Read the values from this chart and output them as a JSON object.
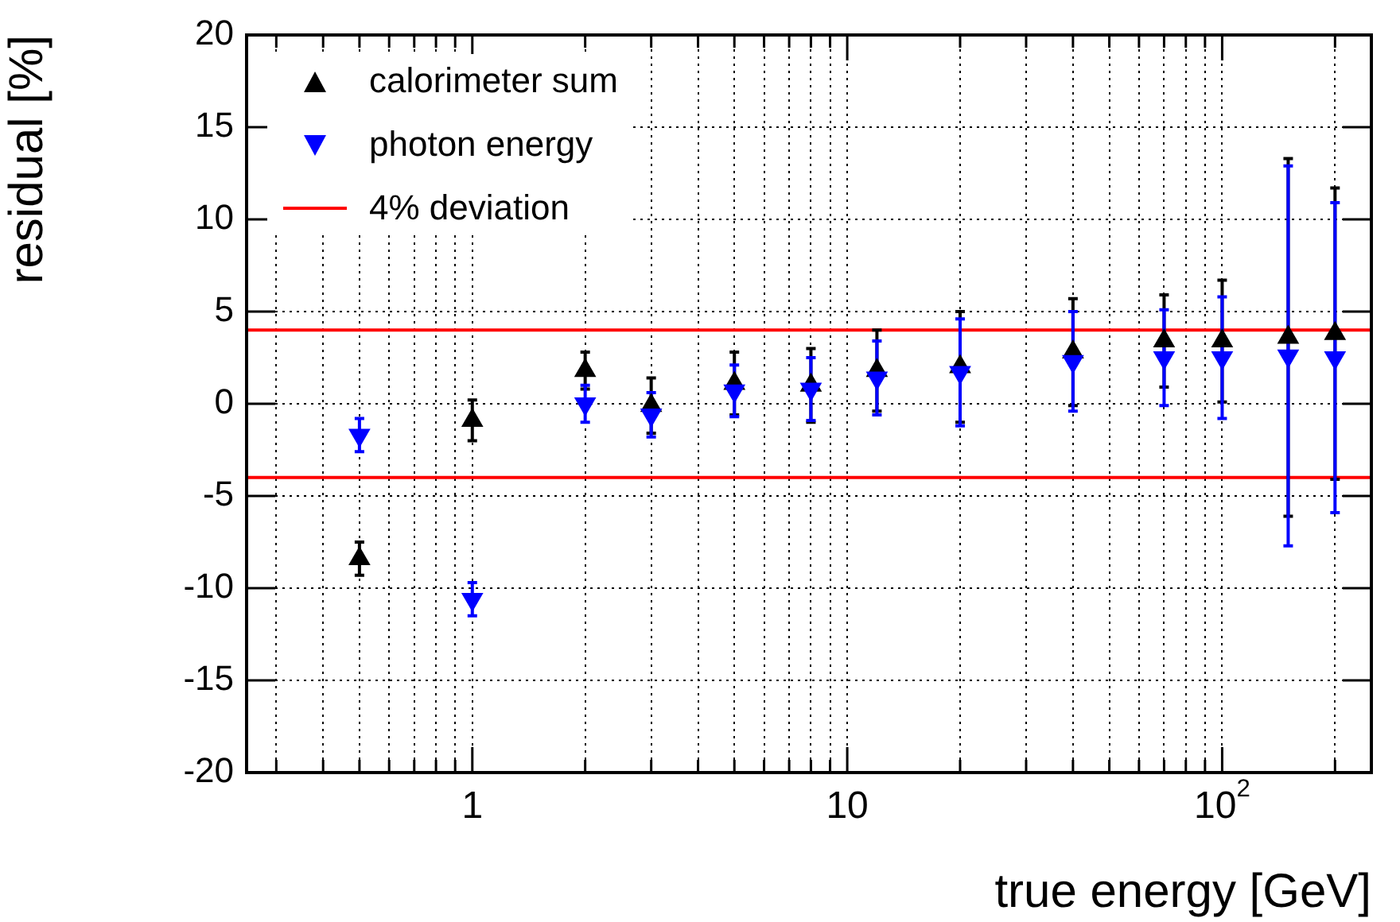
{
  "chart_data": {
    "type": "scatter",
    "xlabel": "true energy [GeV]",
    "ylabel": "residual [%]",
    "log": "x",
    "xlim": [
      0.25,
      250
    ],
    "ylim": [
      -20,
      20
    ],
    "xticks": [
      {
        "value": 0.3,
        "label": null
      },
      {
        "value": 0.4,
        "label": null
      },
      {
        "value": 0.5,
        "label": null
      },
      {
        "value": 0.6,
        "label": null
      },
      {
        "value": 0.7,
        "label": null
      },
      {
        "value": 0.8,
        "label": null
      },
      {
        "value": 0.9,
        "label": null
      },
      1,
      {
        "value": 2,
        "label": null
      },
      {
        "value": 3,
        "label": null
      },
      {
        "value": 4,
        "label": null
      },
      {
        "value": 5,
        "label": null
      },
      {
        "value": 6,
        "label": null
      },
      {
        "value": 7,
        "label": null
      },
      {
        "value": 8,
        "label": null
      },
      {
        "value": 9,
        "label": null
      },
      10,
      {
        "value": 20,
        "label": null
      },
      {
        "value": 30,
        "label": null
      },
      {
        "value": 40,
        "label": null
      },
      {
        "value": 50,
        "label": null
      },
      {
        "value": 60,
        "label": null
      },
      {
        "value": 70,
        "label": null
      },
      {
        "value": 80,
        "label": null
      },
      {
        "value": 90,
        "label": null
      },
      {
        "value": 100,
        "label": "10$^{2}$"
      },
      {
        "value": 200,
        "label": null
      }
    ],
    "yticks": [
      -20,
      -15,
      -10,
      -5,
      0,
      5,
      10,
      15,
      20
    ],
    "grid": true,
    "legend": "top left",
    "series": [
      {
        "name": "calorimeter sum",
        "color": "#000000",
        "marker": "triangle",
        "x": [
          0.5,
          1,
          2,
          3,
          5,
          8,
          12,
          20,
          40,
          70,
          100,
          150,
          200
        ],
        "values": [
          -8.4,
          -0.9,
          1.8,
          -0.1,
          1.1,
          1.0,
          1.8,
          2.0,
          2.8,
          3.4,
          3.4,
          3.6,
          3.8
        ],
        "errors": [
          0.9,
          1.1,
          1.0,
          1.5,
          1.7,
          2.0,
          2.2,
          3.0,
          2.9,
          2.5,
          3.3,
          9.7,
          7.9
        ]
      },
      {
        "name": "photon energy",
        "color": "#0000ff",
        "marker": "triangle_down",
        "x": [
          0.5,
          1,
          2,
          3,
          5,
          8,
          12,
          20,
          40,
          70,
          100,
          150,
          200
        ],
        "values": [
          -1.7,
          -10.6,
          0.0,
          -0.6,
          0.7,
          0.8,
          1.4,
          1.7,
          2.3,
          2.5,
          2.5,
          2.6,
          2.5
        ],
        "errors": [
          0.9,
          0.9,
          1.0,
          1.2,
          1.4,
          1.7,
          2.0,
          2.9,
          2.7,
          2.6,
          3.3,
          10.3,
          8.4
        ]
      }
    ],
    "ref_lines": [
      {
        "axis": "y",
        "value": 4,
        "label": "4% deviation",
        "color": "#ff0000"
      },
      {
        "axis": "y",
        "value": -4,
        "color": "#ff0000"
      }
    ]
  }
}
